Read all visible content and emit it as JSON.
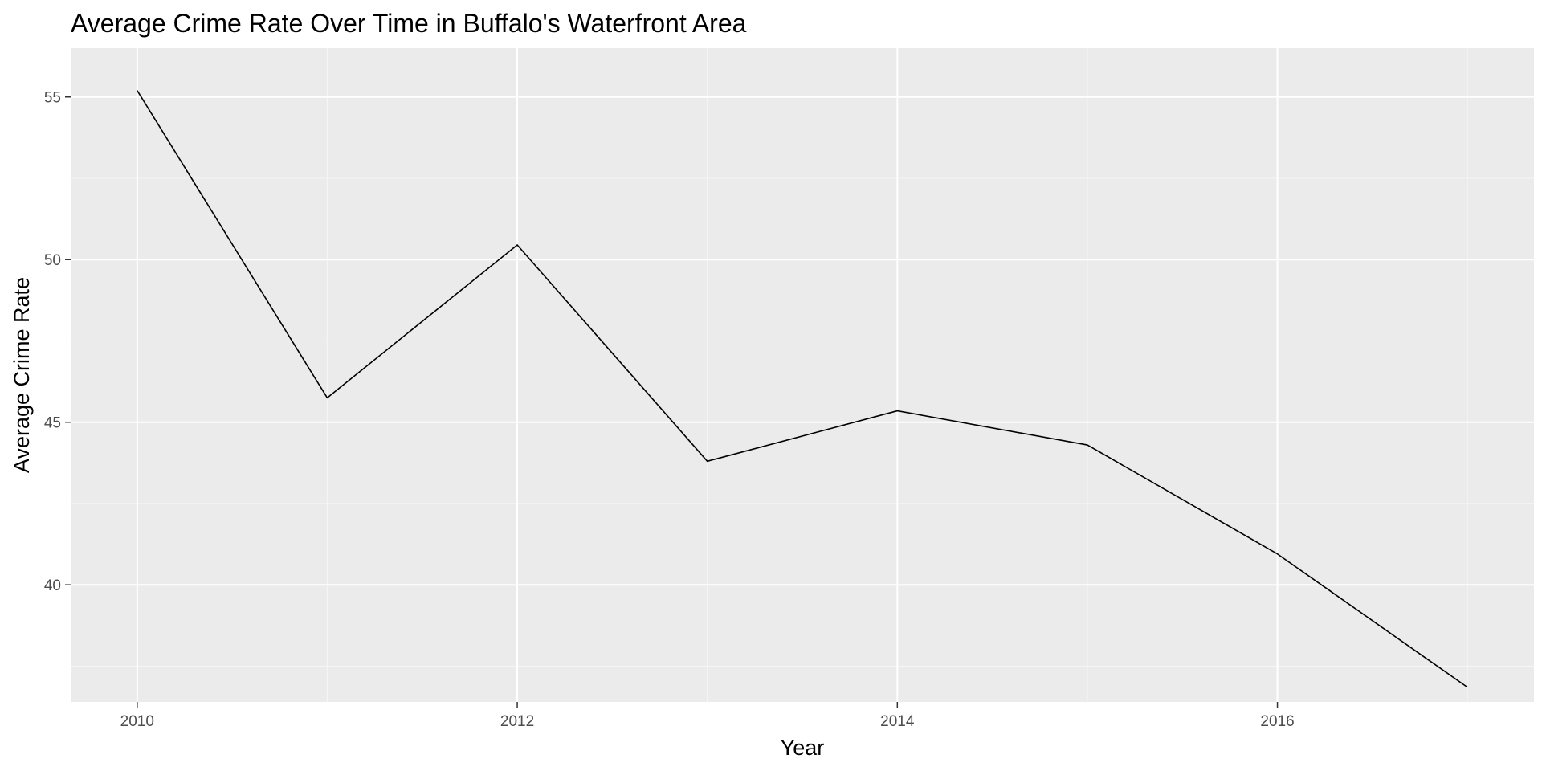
{
  "chart_data": {
    "type": "line",
    "title": "Average Crime Rate Over Time in Buffalo's Waterfront Area",
    "xlabel": "Year",
    "ylabel": "Average Crime Rate",
    "x": [
      2010,
      2011,
      2012,
      2013,
      2014,
      2015,
      2016,
      2017
    ],
    "series": [
      {
        "values": [
          55.2,
          45.75,
          50.45,
          43.8,
          45.35,
          44.3,
          40.95,
          36.85
        ]
      }
    ],
    "xlim": [
      2009.65,
      2017.35
    ],
    "ylim": [
      36.4,
      56.5
    ],
    "x_ticks": [
      2010,
      2012,
      2014,
      2016
    ],
    "x_tick_labels": [
      "2010",
      "2012",
      "2014",
      "2016"
    ],
    "y_ticks": [
      40,
      45,
      50,
      55
    ],
    "y_tick_labels": [
      "40",
      "45",
      "50",
      "55"
    ],
    "grid": true,
    "legend": "none",
    "colors": {
      "panel_background": "#ebebeb",
      "grid_major": "#ffffff",
      "grid_minor": "#f5f5f5",
      "line": "#000000",
      "tick_text": "#4d4d4d",
      "tick_mark": "#333333",
      "text": "#000000"
    }
  }
}
